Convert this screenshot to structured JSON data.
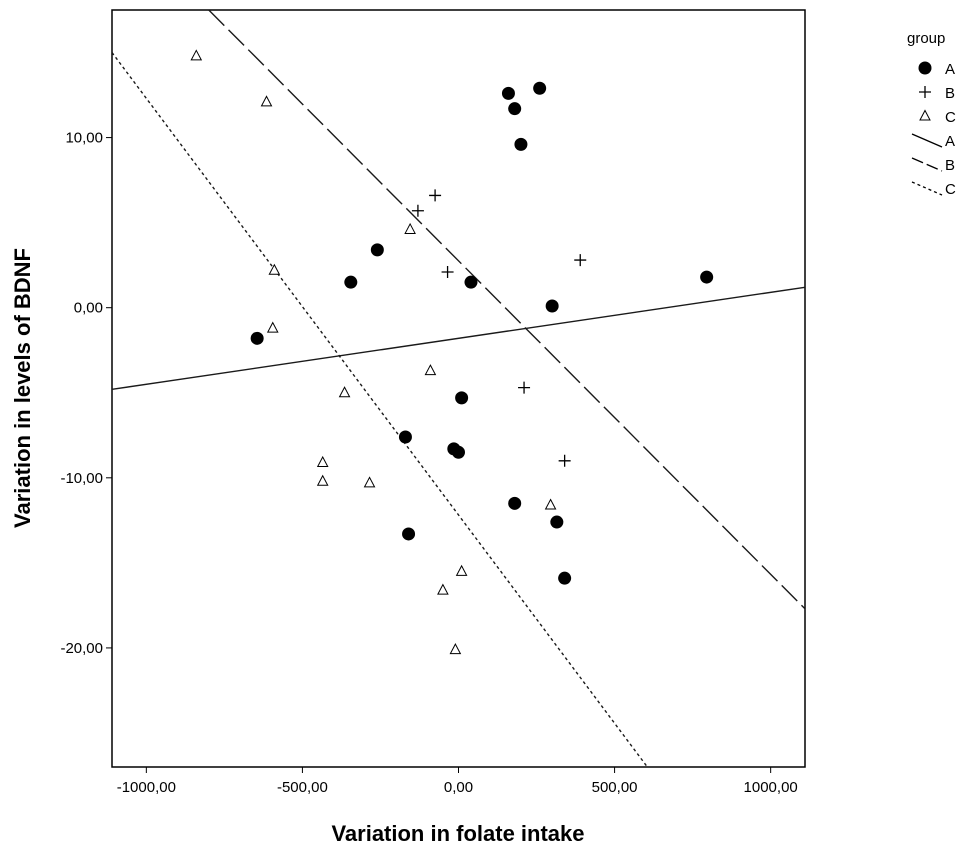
{
  "chart_data": {
    "type": "scatter",
    "title": "",
    "xlabel": "Variation in folate intake",
    "ylabel": "Variation in levels of BDNF",
    "xlim": [
      -1110,
      1110
    ],
    "ylim": [
      -27,
      17.5
    ],
    "x_ticks": [
      -1000,
      -500,
      0,
      500,
      1000
    ],
    "x_tick_labels": [
      "-1000,00",
      "-500,00",
      "0,00",
      "500,00",
      "1000,00"
    ],
    "y_ticks": [
      -20,
      -10,
      0,
      10
    ],
    "y_tick_labels": [
      "-20,00",
      "-10,00",
      "0,00",
      "10,00"
    ],
    "grid": false,
    "legend_position": "right",
    "legend": {
      "title": "group",
      "entries": [
        {
          "label": "A",
          "symbol": "filled-circle"
        },
        {
          "label": "B",
          "symbol": "plus"
        },
        {
          "label": "C",
          "symbol": "open-triangle"
        },
        {
          "label": "A",
          "symbol": "solid-line"
        },
        {
          "label": "B",
          "symbol": "dashed-line"
        },
        {
          "label": "C",
          "symbol": "dotted-line"
        }
      ]
    },
    "series": [
      {
        "name": "A",
        "marker": "filled-circle",
        "points": [
          [
            160,
            12.6
          ],
          [
            260,
            12.9
          ],
          [
            180,
            11.7
          ],
          [
            200,
            9.6
          ],
          [
            -260,
            3.4
          ],
          [
            -345,
            1.5
          ],
          [
            40,
            1.5
          ],
          [
            300,
            0.1
          ],
          [
            795,
            1.8
          ],
          [
            -645,
            -1.8
          ],
          [
            10,
            -5.3
          ],
          [
            -170,
            -7.6
          ],
          [
            -15,
            -8.3
          ],
          [
            0,
            -8.5
          ],
          [
            180,
            -11.5
          ],
          [
            315,
            -12.6
          ],
          [
            -160,
            -13.3
          ],
          [
            340,
            -15.9
          ]
        ]
      },
      {
        "name": "B",
        "marker": "plus",
        "points": [
          [
            -75,
            6.6
          ],
          [
            -130,
            5.7
          ],
          [
            -35,
            2.1
          ],
          [
            390,
            2.8
          ],
          [
            210,
            -4.7
          ],
          [
            340,
            -9.0
          ]
        ]
      },
      {
        "name": "C",
        "marker": "open-triangle",
        "points": [
          [
            -840,
            14.8
          ],
          [
            -615,
            12.1
          ],
          [
            -590,
            2.2
          ],
          [
            -155,
            4.6
          ],
          [
            -595,
            -1.2
          ],
          [
            -365,
            -5.0
          ],
          [
            -90,
            -3.7
          ],
          [
            -435,
            -9.1
          ],
          [
            -435,
            -10.2
          ],
          [
            -285,
            -10.3
          ],
          [
            295,
            -11.6
          ],
          [
            10,
            -15.5
          ],
          [
            -50,
            -16.6
          ],
          [
            -10,
            -20.1
          ]
        ]
      }
    ],
    "fit_lines": [
      {
        "name": "A",
        "style": "solid",
        "points": [
          [
            -1110,
            -4.8
          ],
          [
            1110,
            1.2
          ]
        ]
      },
      {
        "name": "B",
        "style": "dashed",
        "points": [
          [
            -800,
            17.5
          ],
          [
            1110,
            -17.7
          ]
        ]
      },
      {
        "name": "C",
        "style": "dotted",
        "points": [
          [
            -1110,
            15.0
          ],
          [
            605,
            -27.0
          ]
        ]
      }
    ]
  }
}
